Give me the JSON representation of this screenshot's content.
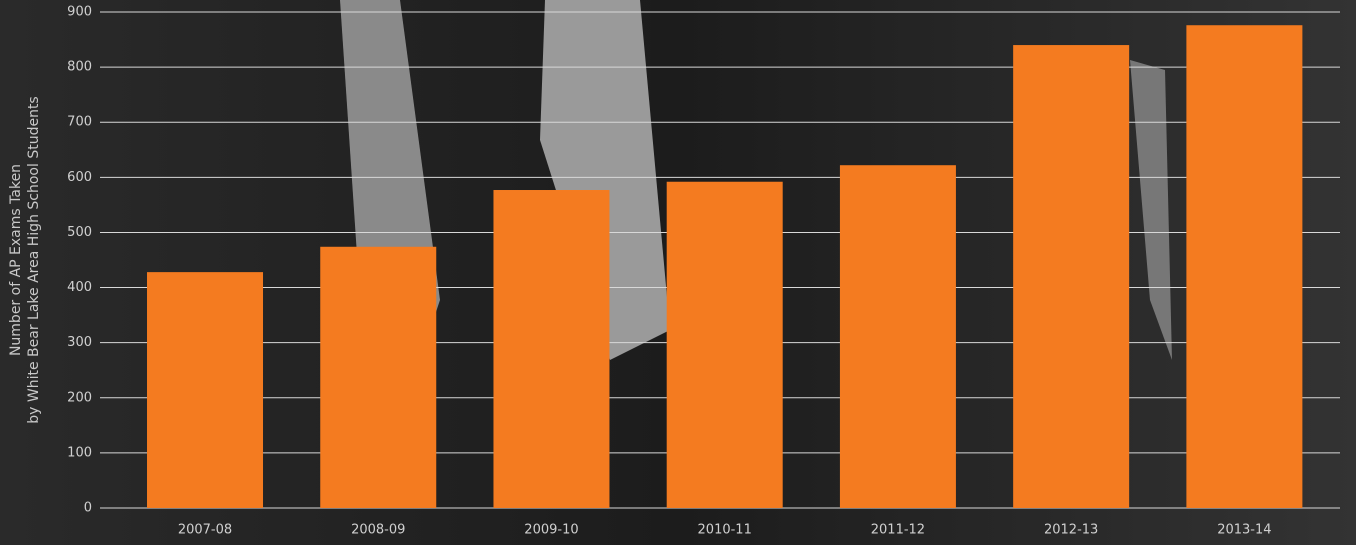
{
  "chart_data": {
    "type": "bar",
    "ylabel": [
      "Number of AP Exams Taken",
      "by White Bear Lake Area High School Students"
    ],
    "categories": [
      "2007-08",
      "2008-09",
      "2009-10",
      "2010-11",
      "2011-12",
      "2012-13",
      "2013-14"
    ],
    "values": [
      428,
      474,
      577,
      592,
      622,
      840,
      876
    ],
    "color": "#f47b20",
    "ylim": [
      0,
      900
    ],
    "yticks": [
      0,
      100,
      200,
      300,
      400,
      500,
      600,
      700,
      800,
      900
    ],
    "grid": true
  }
}
